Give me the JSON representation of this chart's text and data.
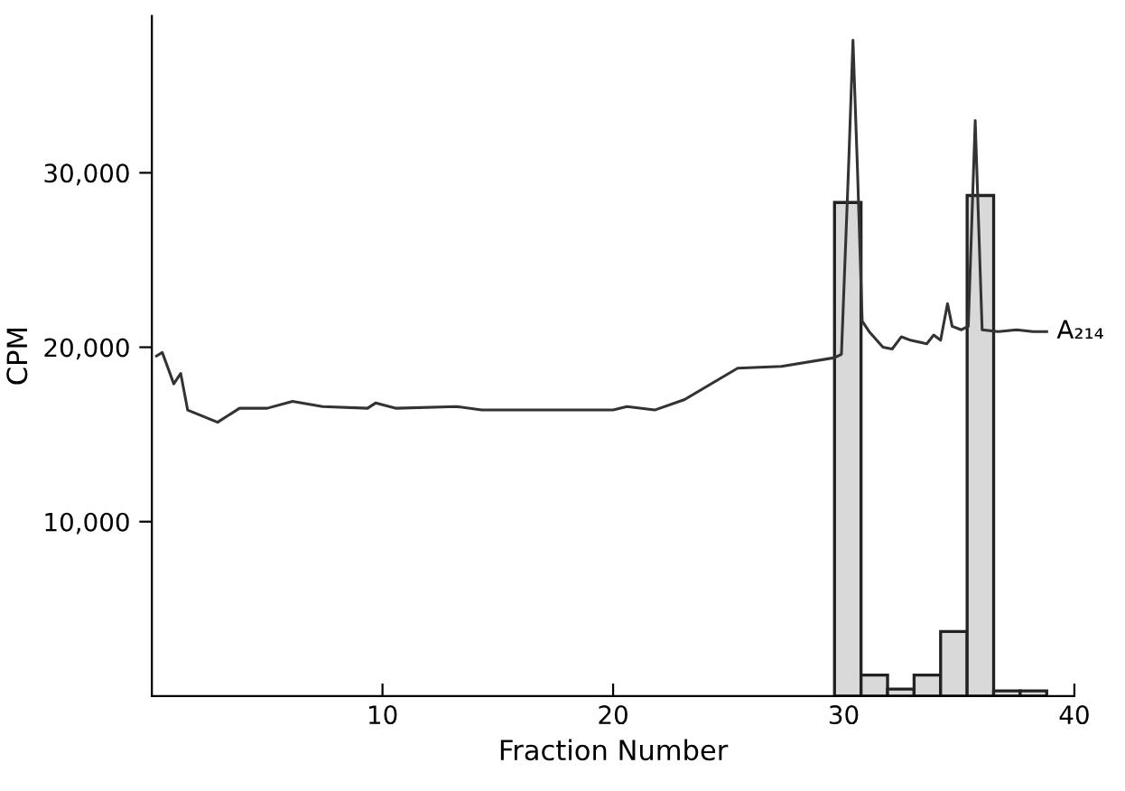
{
  "chart_data": {
    "type": "histogram",
    "xlabel": "Fraction Number",
    "ylabel": "CPM",
    "bins": [
      29.6,
      30.75,
      31.9,
      33.05,
      34.2,
      35.35,
      36.5,
      37.65,
      38.8
    ],
    "values": [
      28300,
      1200,
      400,
      1200,
      3700,
      28700,
      300,
      300
    ],
    "color": "#d9d9d9",
    "series": [
      {
        "type": "line",
        "name": "A₂₁₄",
        "color": "#333333",
        "x": [
          0.2,
          0.45,
          0.95,
          1.25,
          1.55,
          2.85,
          3.8,
          5,
          6.1,
          7.4,
          9.35,
          9.7,
          10.6,
          13.2,
          14.3,
          18.1,
          20.0,
          20.6,
          21.8,
          23.1,
          25.4,
          27.3,
          29.6,
          29.9,
          30.2,
          30.4,
          30.6,
          30.8,
          31.1,
          31.7,
          32.1,
          32.5,
          32.9,
          33.6,
          33.9,
          34.2,
          34.5,
          34.7,
          35.1,
          35.4,
          35.7,
          36.0,
          36.7,
          37.5,
          38.2,
          38.8
        ],
        "values": [
          19500,
          19700,
          17900,
          18500,
          16400,
          15700,
          16500,
          16500,
          16900,
          16600,
          16500,
          16800,
          16500,
          16600,
          16400,
          16400,
          16400,
          16600,
          16400,
          17000,
          18800,
          18900,
          19400,
          19600,
          30000,
          37600,
          30000,
          21500,
          20900,
          20000,
          19900,
          20600,
          20400,
          20200,
          20700,
          20400,
          22500,
          21200,
          21000,
          21200,
          33000,
          21000,
          20900,
          21000,
          20900,
          20900
        ]
      }
    ],
    "xlim": [
      0,
      40
    ],
    "xticks": [
      10,
      20,
      30,
      40
    ],
    "ylim": [
      0,
      39000
    ],
    "yticks": [
      {
        "value": 10000,
        "label": "10,000"
      },
      {
        "value": 20000,
        "label": "20,000"
      },
      {
        "value": 30000,
        "label": "30,000"
      }
    ],
    "grid": false,
    "legend": false
  }
}
